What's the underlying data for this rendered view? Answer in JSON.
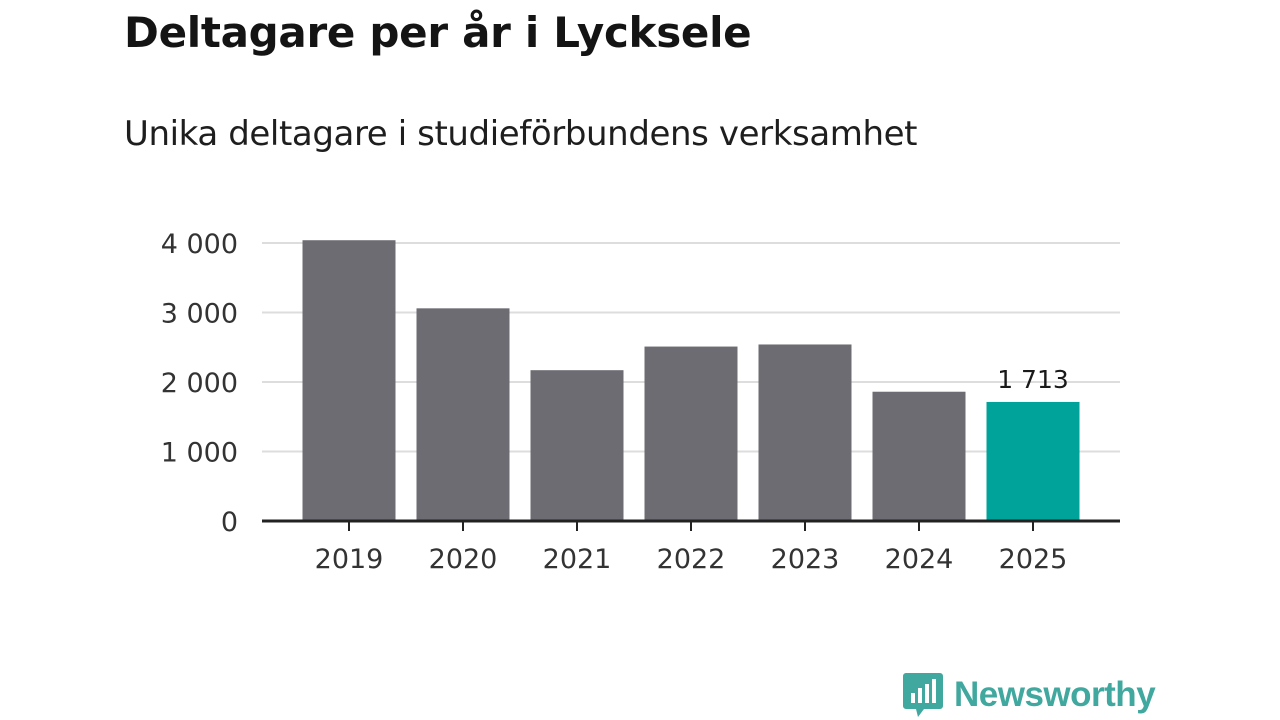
{
  "title": "Deltagare per år i Lycksele",
  "subtitle": "Unika deltagare i studieförbundens verksamhet",
  "brand": {
    "name": "Newsworthy",
    "color": "#40a89e",
    "icon": "bar-chart-speech-bubble-icon"
  },
  "colors": {
    "bar": "#6d6c72",
    "highlight": "#00a39a",
    "grid": "#dddddd",
    "axis": "#222222"
  },
  "chart_data": {
    "type": "bar",
    "categories": [
      "2019",
      "2020",
      "2021",
      "2022",
      "2023",
      "2024",
      "2025"
    ],
    "values": [
      4040,
      3060,
      2170,
      2510,
      2540,
      1860,
      1713
    ],
    "highlight_index": 6,
    "data_labels": [
      {
        "index": 6,
        "text": "1 713"
      }
    ],
    "yticks": [
      0,
      1000,
      2000,
      3000,
      4000
    ],
    "ytick_labels": [
      "0",
      "1 000",
      "2 000",
      "3 000",
      "4 000"
    ],
    "ylim": [
      0,
      4000
    ],
    "grid": true,
    "xlabel": "",
    "ylabel": ""
  }
}
